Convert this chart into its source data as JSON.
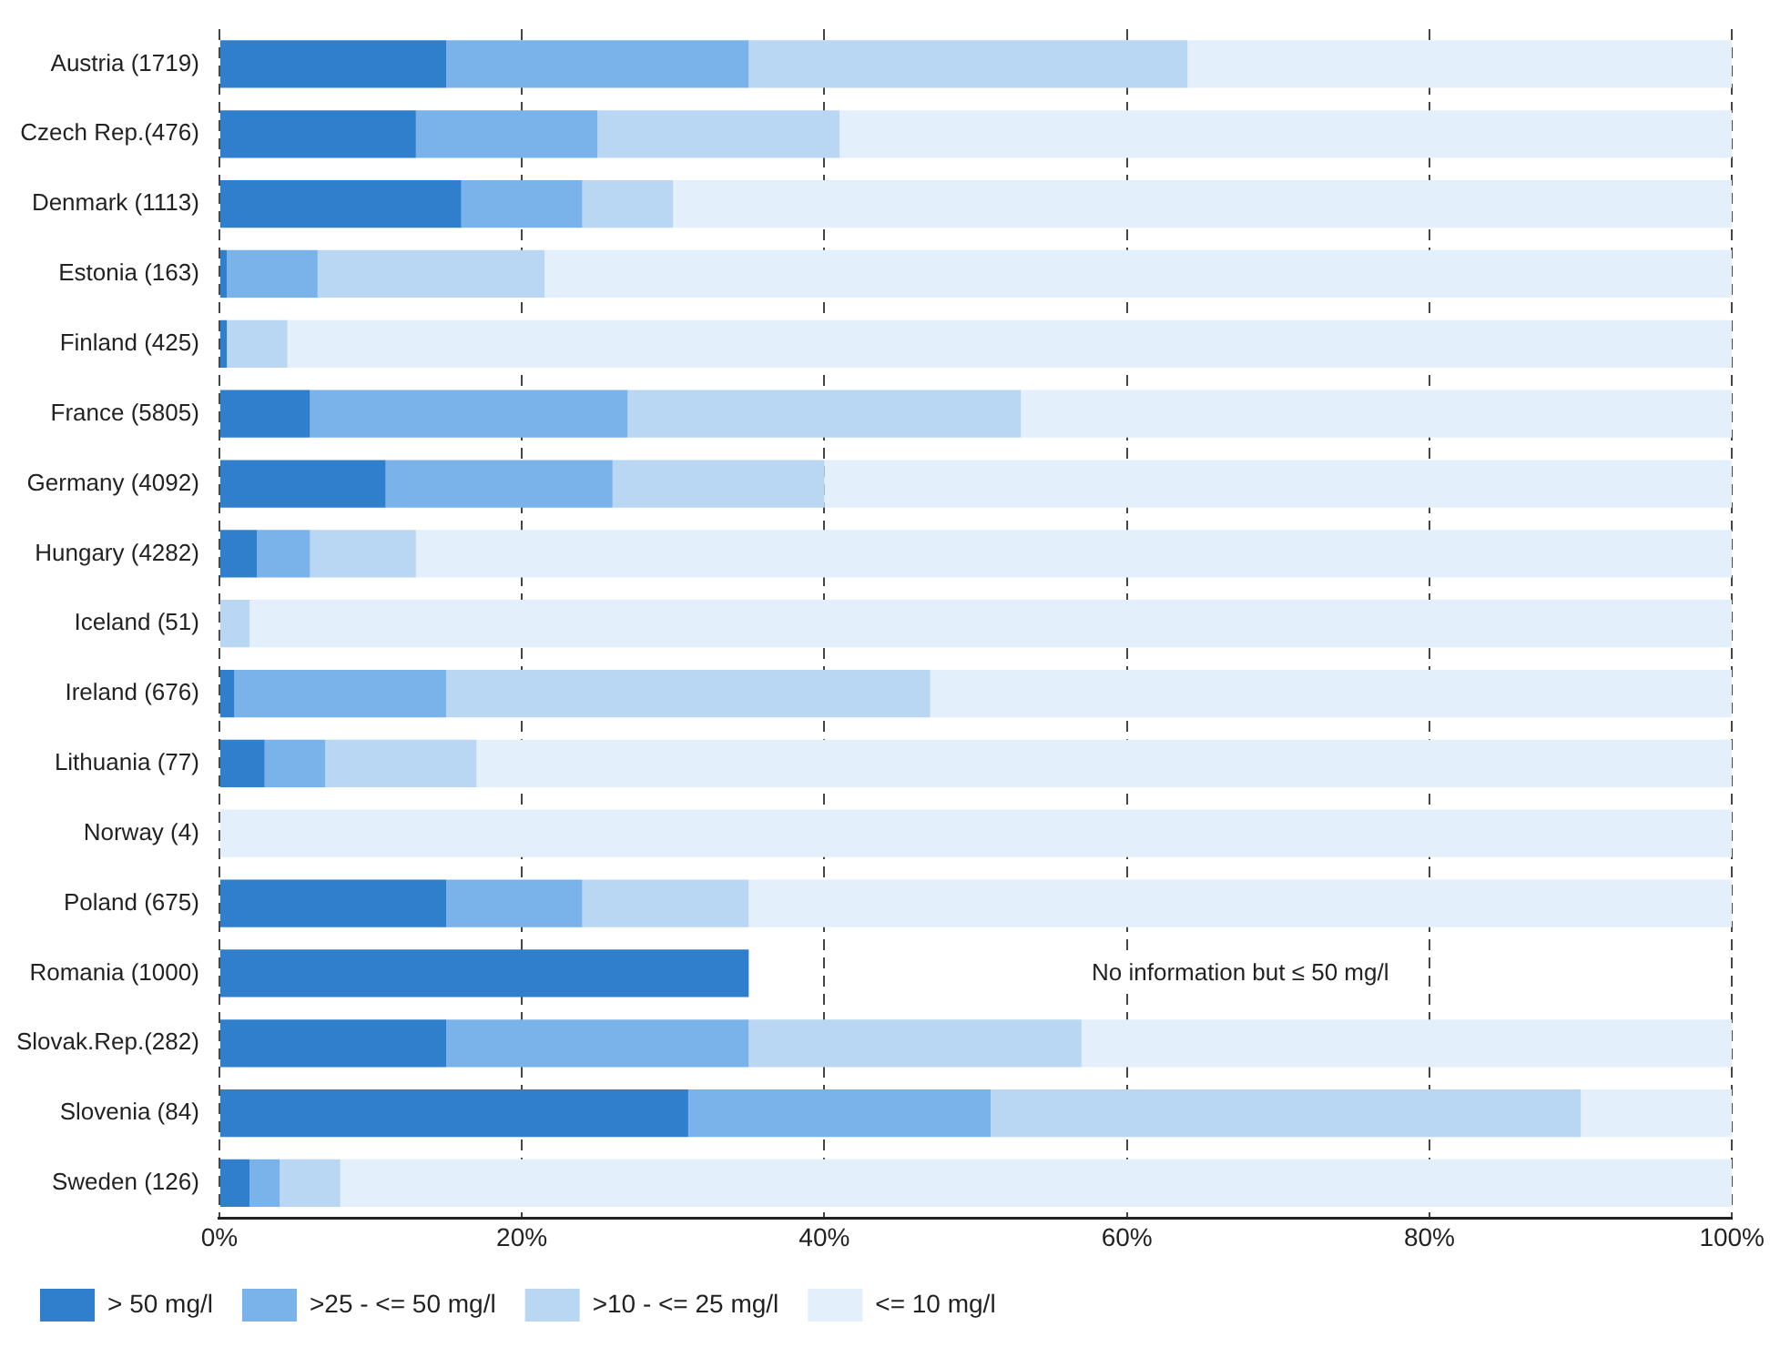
{
  "chart_data": {
    "type": "bar",
    "orientation": "horizontal",
    "stacked": true,
    "categories": [
      "Austria (1719)",
      "Czech Rep.(476)",
      "Denmark (1113)",
      "Estonia (163)",
      "Finland (425)",
      "France (5805)",
      "Germany (4092)",
      "Hungary (4282)",
      "Iceland (51)",
      "Ireland (676)",
      "Lithuania (77)",
      "Norway (4)",
      "Poland (675)",
      "Romania (1000)",
      "Slovak.Rep.(282)",
      "Slovenia (84)",
      "Sweden (126)"
    ],
    "series": [
      {
        "name": "> 50 mg/l",
        "color": "#2f7fcc",
        "values": [
          15,
          13,
          16,
          0.5,
          0.5,
          6,
          11,
          2.5,
          0,
          1,
          3,
          0,
          15,
          35,
          15,
          31,
          2
        ]
      },
      {
        "name": ">25 - <= 50 mg/l",
        "color": "#7ab2ea",
        "values": [
          20,
          12,
          8,
          6,
          0,
          21,
          15,
          3.5,
          0,
          14,
          4,
          0,
          9,
          null,
          20,
          20,
          2
        ]
      },
      {
        "name": ">10 - <= 25 mg/l",
        "color": "#b9d7f2",
        "values": [
          29,
          16,
          6,
          15,
          4,
          26,
          14,
          7,
          2,
          32,
          10,
          0,
          11,
          null,
          22,
          39,
          4
        ]
      },
      {
        "name": "<= 10 mg/l",
        "color": "#e3effa",
        "values": [
          36,
          59,
          70,
          78.5,
          95.5,
          47,
          60,
          87,
          98,
          53,
          83,
          100,
          65,
          null,
          43,
          10,
          92
        ]
      }
    ],
    "xlim": [
      0,
      100
    ],
    "xticks": [
      {
        "value": 0,
        "label": "0%"
      },
      {
        "value": 20,
        "label": "20%"
      },
      {
        "value": 40,
        "label": "40%"
      },
      {
        "value": 60,
        "label": "60%"
      },
      {
        "value": 80,
        "label": "80%"
      },
      {
        "value": 100,
        "label": "100%"
      }
    ],
    "grid": "x",
    "line_style": "dashed",
    "legend": "bottom",
    "annotations": [
      "No information but ≤ 50 mg/l"
    ]
  }
}
